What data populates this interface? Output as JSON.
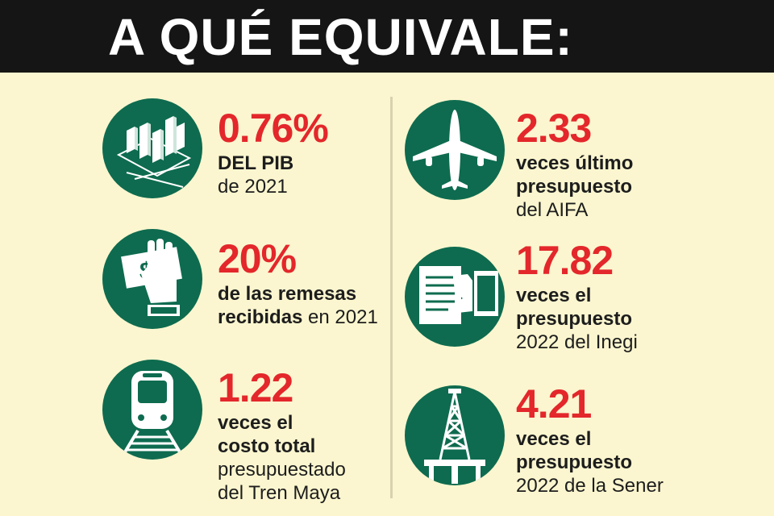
{
  "header": {
    "title": "A QUÉ EQUIVALE:"
  },
  "items": [
    {
      "icon": "bar-chart-icon",
      "value": "0.76%",
      "l1b": "DEL PIB",
      "l1": "",
      "l2b": "",
      "l2": "de 2021",
      "l3b": "",
      "l3": "",
      "l4": ""
    },
    {
      "icon": "hand-money-icon",
      "value": "20%",
      "l1b": "de las remesas",
      "l1": "",
      "l2b": "recibidas",
      "l2": " en 2021",
      "l3b": "",
      "l3": "",
      "l4": ""
    },
    {
      "icon": "train-icon",
      "value": "1.22",
      "l1b": "veces el",
      "l1": "",
      "l2b": "costo total",
      "l2": "",
      "l3b": "",
      "l3": "presupuestado",
      "l4": "del Tren Maya"
    },
    {
      "icon": "airplane-icon",
      "value": "2.33",
      "l1b": "veces último",
      "l1": "",
      "l2b": "presupuesto",
      "l2": "",
      "l3b": "",
      "l3": "del AIFA",
      "l4": ""
    },
    {
      "icon": "document-hand-icon",
      "value": "17.82",
      "l1b": "veces el",
      "l1": "",
      "l2b": "presupuesto",
      "l2": "",
      "l3b": "",
      "l3": "2022 del Inegi",
      "l4": ""
    },
    {
      "icon": "oil-rig-icon",
      "value": "4.21",
      "l1b": "veces el",
      "l1": "",
      "l2b": "presupuesto",
      "l2": "",
      "l3b": "",
      "l3": "2022 de la Sener",
      "l4": ""
    }
  ]
}
